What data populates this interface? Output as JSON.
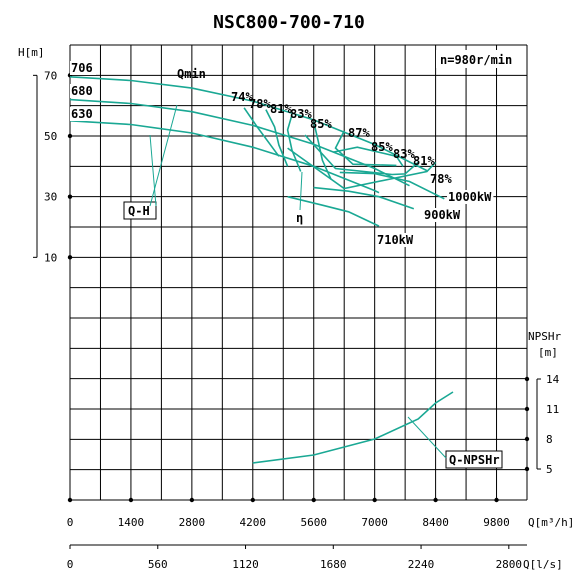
{
  "chart_data": {
    "type": "line",
    "title": "NSC800-700-710",
    "speed_label": "n=980r/min",
    "x_axis": {
      "label": "Q[m³/h]",
      "ticks": [
        "0",
        "1400",
        "2800",
        "4200",
        "5600",
        "7000",
        "8400",
        "9800"
      ],
      "range": [
        0,
        10500
      ]
    },
    "x_axis_secondary": {
      "label": "Q[l/s]",
      "ticks": [
        "0",
        "560",
        "1120",
        "1680",
        "2240",
        "2800"
      ],
      "range": [
        0,
        2916
      ]
    },
    "y_axis_head": {
      "label": "H[m]",
      "ticks": [
        "70",
        "50",
        "30",
        "10"
      ],
      "range": [
        -70,
        80
      ]
    },
    "y_axis_npsh": {
      "label_top": "NPSHr",
      "label_unit": "[m]",
      "ticks": [
        "14",
        "11",
        "8",
        "5"
      ],
      "range": [
        5,
        14
      ]
    },
    "head_curves": [
      {
        "name": "706",
        "x": [
          0,
          1400,
          2800,
          4200,
          5600,
          7000,
          8200
        ],
        "y": [
          69.5,
          68.3,
          65.8,
          61.5,
          55.3,
          47.2,
          38.6
        ]
      },
      {
        "name": "680",
        "x": [
          0,
          1400,
          2800,
          4200,
          5600,
          7000,
          7800
        ],
        "y": [
          62,
          60.7,
          58,
          53.5,
          47.3,
          39.3,
          33.6
        ]
      },
      {
        "name": "630",
        "x": [
          0,
          1400,
          2800,
          4200,
          5600,
          7000,
          7100
        ],
        "y": [
          55,
          53.8,
          51,
          46.3,
          40,
          32,
          31.3
        ]
      }
    ],
    "power_curves": [
      {
        "name": "1000kW",
        "x": [
          6200,
          7000,
          7800,
          8600
        ],
        "y": [
          38,
          37.6,
          35,
          29.3
        ]
      },
      {
        "name": "900kW",
        "x": [
          5600,
          6400,
          7100,
          7900
        ],
        "y": [
          33,
          31.8,
          30,
          26
        ]
      },
      {
        "name": "710kW",
        "x": [
          5000,
          5800,
          6400,
          7100
        ],
        "y": [
          30,
          27.2,
          25,
          20.3
        ]
      }
    ],
    "efficiency_labels": [
      "74%",
      "78%",
      "81%",
      "83%",
      "85%",
      "87%",
      "85%",
      "83%",
      "81%",
      "78%"
    ],
    "efficiency_contours": [
      {
        "x": [
          4000,
          4300,
          4800
        ],
        "y": [
          59.3,
          53,
          43.3
        ]
      },
      {
        "x": [
          4500,
          4700,
          4800,
          5000
        ],
        "y": [
          58.7,
          53,
          47,
          40
        ]
      },
      {
        "x": [
          5100,
          5000,
          5100,
          5300
        ],
        "y": [
          57,
          52,
          45.3,
          38.3
        ]
      },
      {
        "x": [
          5600,
          5700,
          5800,
          6000
        ],
        "y": [
          54.7,
          48.5,
          42,
          35.7
        ]
      },
      {
        "x": [
          6300,
          6100,
          6500,
          7500
        ],
        "y": [
          51.7,
          46,
          40.7,
          40.3
        ]
      },
      {
        "x": [
          6050,
          6600,
          7500,
          7650
        ],
        "y": [
          44.7,
          46.3,
          43.3,
          40
        ]
      },
      {
        "x": [
          5400,
          6100,
          7400,
          7700,
          8000
        ],
        "y": [
          50.3,
          39.3,
          37.3,
          37.5,
          41.3
        ]
      },
      {
        "x": [
          5000,
          6300,
          8200,
          8400
        ],
        "y": [
          46,
          32.7,
          38.3,
          41.3
        ]
      }
    ],
    "npshr_curve": {
      "name": "Q-NPSHr",
      "x": [
        4200,
        5600,
        7000,
        8000,
        8400,
        8800
      ],
      "y": [
        5.6,
        6.4,
        8,
        10,
        11.6,
        12.7
      ]
    },
    "curve_labels": {
      "q_h": "Q-H",
      "eta": "η",
      "q_min": "Qmin"
    },
    "grid": true,
    "colors": {
      "curve": "#1aa894",
      "grid": "#000000"
    }
  }
}
